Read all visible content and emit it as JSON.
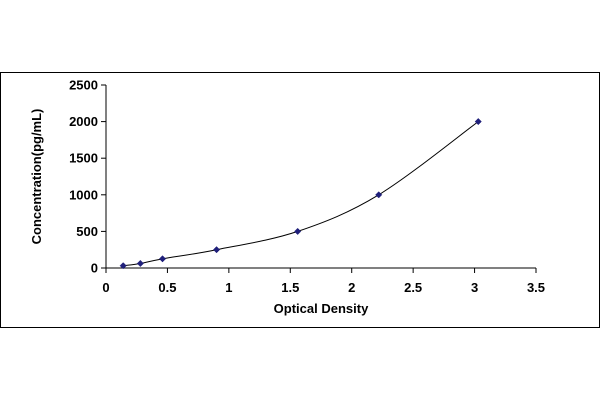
{
  "chart_data": {
    "type": "scatter",
    "title": "",
    "xlabel": "Optical Density",
    "ylabel": "Concentration(pg/mL)",
    "xlim": [
      0,
      3.5
    ],
    "ylim": [
      0,
      2500
    ],
    "xticks": [
      0,
      0.5,
      1,
      1.5,
      2,
      2.5,
      3,
      3.5
    ],
    "yticks": [
      0,
      500,
      1000,
      1500,
      2000,
      2500
    ],
    "xtick_labels": [
      "0",
      "0.5",
      "1",
      "1.5",
      "2",
      "2.5",
      "3",
      "3.5"
    ],
    "ytick_labels": [
      "0",
      "500",
      "1000",
      "1500",
      "2000",
      "2500"
    ],
    "grid": false,
    "legend": "none",
    "series": [
      {
        "marker": "diamond",
        "color": "#1f1f7a",
        "trendline": "smooth curve",
        "x": [
          0.14,
          0.28,
          0.46,
          0.9,
          1.56,
          2.22,
          3.03
        ],
        "y": [
          31,
          62,
          125,
          250,
          500,
          1000,
          2000
        ]
      }
    ]
  }
}
